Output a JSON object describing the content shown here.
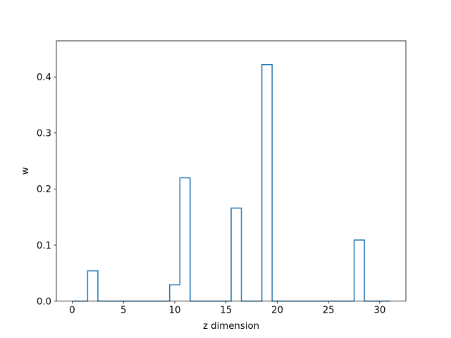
{
  "chart_data": {
    "type": "step",
    "xlabel": "z dimension",
    "ylabel": "w",
    "xlim": [
      -1.55,
      32.55
    ],
    "ylim": [
      0,
      0.4644
    ],
    "xticks": [
      0,
      5,
      10,
      15,
      20,
      25,
      30
    ],
    "yticks": [
      0.0,
      0.1,
      0.2,
      0.3,
      0.4
    ],
    "xtick_labels": [
      "0",
      "5",
      "10",
      "15",
      "20",
      "25",
      "30"
    ],
    "ytick_labels": [
      "0.0",
      "0.1",
      "0.2",
      "0.3",
      "0.4"
    ],
    "grid": false,
    "legend": "none",
    "step_where": "mid",
    "series": [
      {
        "x": [
          0,
          1,
          2,
          3,
          4,
          5,
          6,
          7,
          8,
          9,
          10,
          11,
          12,
          13,
          14,
          15,
          16,
          17,
          18,
          19,
          20,
          21,
          22,
          23,
          24,
          25,
          26,
          27,
          28,
          29,
          30,
          31
        ],
        "values": [
          0,
          0,
          0.054,
          0,
          0,
          0,
          0,
          0,
          0,
          0,
          0.029,
          0.22,
          0,
          0,
          0,
          0,
          0.166,
          0,
          0,
          0.422,
          0,
          0,
          0,
          0,
          0,
          0,
          0,
          0,
          0.109,
          0,
          0,
          0
        ],
        "color": "#1f77b4"
      }
    ]
  }
}
